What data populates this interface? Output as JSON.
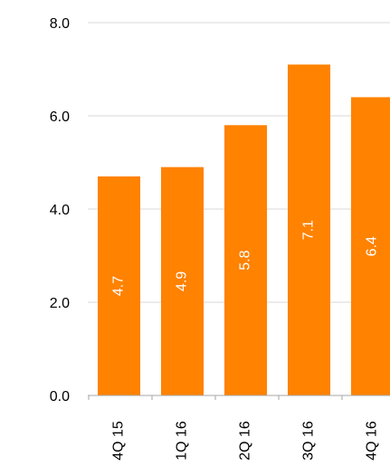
{
  "chart_data": {
    "type": "bar",
    "categories": [
      "4Q 15",
      "1Q 16",
      "2Q 16",
      "3Q 16",
      "4Q 16"
    ],
    "values": [
      4.7,
      4.9,
      5.8,
      7.1,
      6.4
    ],
    "value_labels": [
      "4.7",
      "4.9",
      "5.8",
      "7.1",
      "6.4"
    ],
    "y_ticks": [
      0,
      2,
      4,
      6,
      8
    ],
    "y_tick_labels": [
      "0.0",
      "2.0",
      "4.0",
      "6.0",
      "8.0"
    ],
    "ylim": [
      0,
      8
    ],
    "grid": true,
    "bar_color": "#ff8200",
    "label_color": "#ffffff",
    "grid_color": "#d9d9d9",
    "axis_color": "#a6a6a6"
  }
}
